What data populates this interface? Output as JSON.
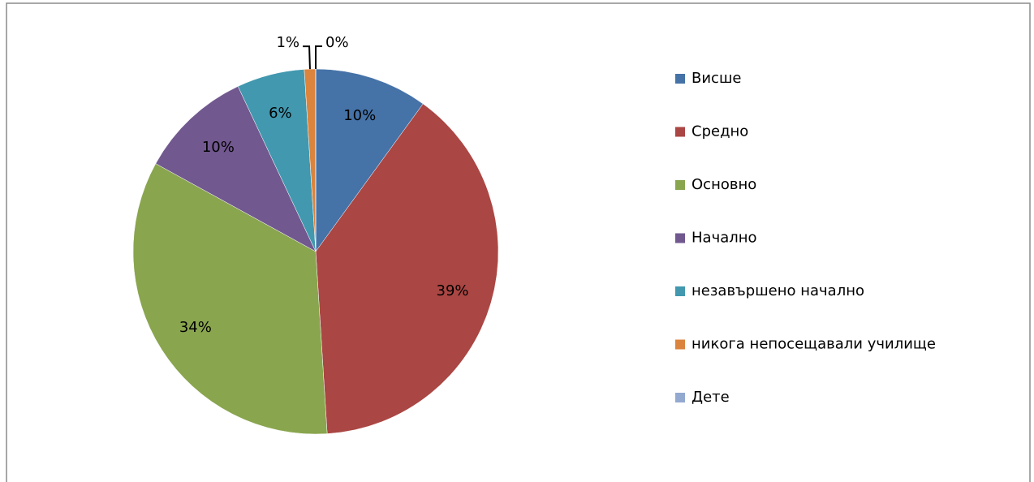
{
  "chart_data": {
    "type": "pie",
    "categories": [
      "Висше",
      "Средно",
      "Основно",
      "Начално",
      "незавършено начално",
      "никога непосещавали училище",
      "Дете"
    ],
    "values": [
      10,
      39,
      34,
      10,
      6,
      1,
      0
    ],
    "value_labels": [
      "10%",
      "39%",
      "34%",
      "10%",
      "6%",
      "1%",
      "0%"
    ],
    "colors": [
      "#4572a7",
      "#aa4643",
      "#89a54e",
      "#71588f",
      "#4198af",
      "#db843d",
      "#93a9cf"
    ],
    "legend": "right"
  }
}
